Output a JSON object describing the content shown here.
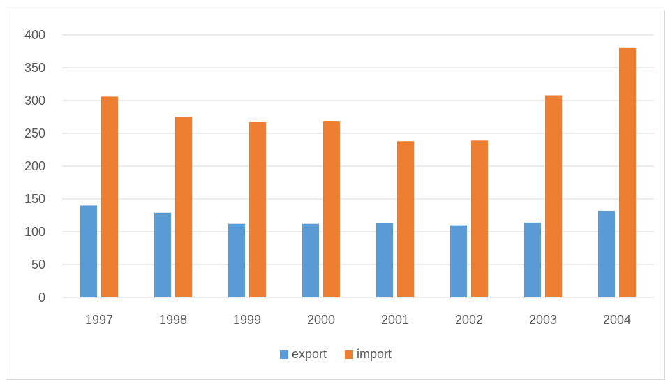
{
  "chart_data": {
    "type": "bar",
    "title": "",
    "xlabel": "",
    "ylabel": "",
    "categories": [
      "1997",
      "1998",
      "1999",
      "2000",
      "2001",
      "2002",
      "2003",
      "2004"
    ],
    "series": [
      {
        "name": "export",
        "color": "#5b9bd5",
        "values": [
          140,
          129,
          112,
          112,
          113,
          110,
          114,
          132
        ]
      },
      {
        "name": "import",
        "color": "#ed7d31",
        "values": [
          306,
          275,
          267,
          268,
          238,
          239,
          308,
          380
        ]
      }
    ],
    "ylim": [
      0,
      400
    ],
    "yticks": [
      0,
      50,
      100,
      150,
      200,
      250,
      300,
      350,
      400
    ],
    "grid": true,
    "legend": "bottom"
  }
}
